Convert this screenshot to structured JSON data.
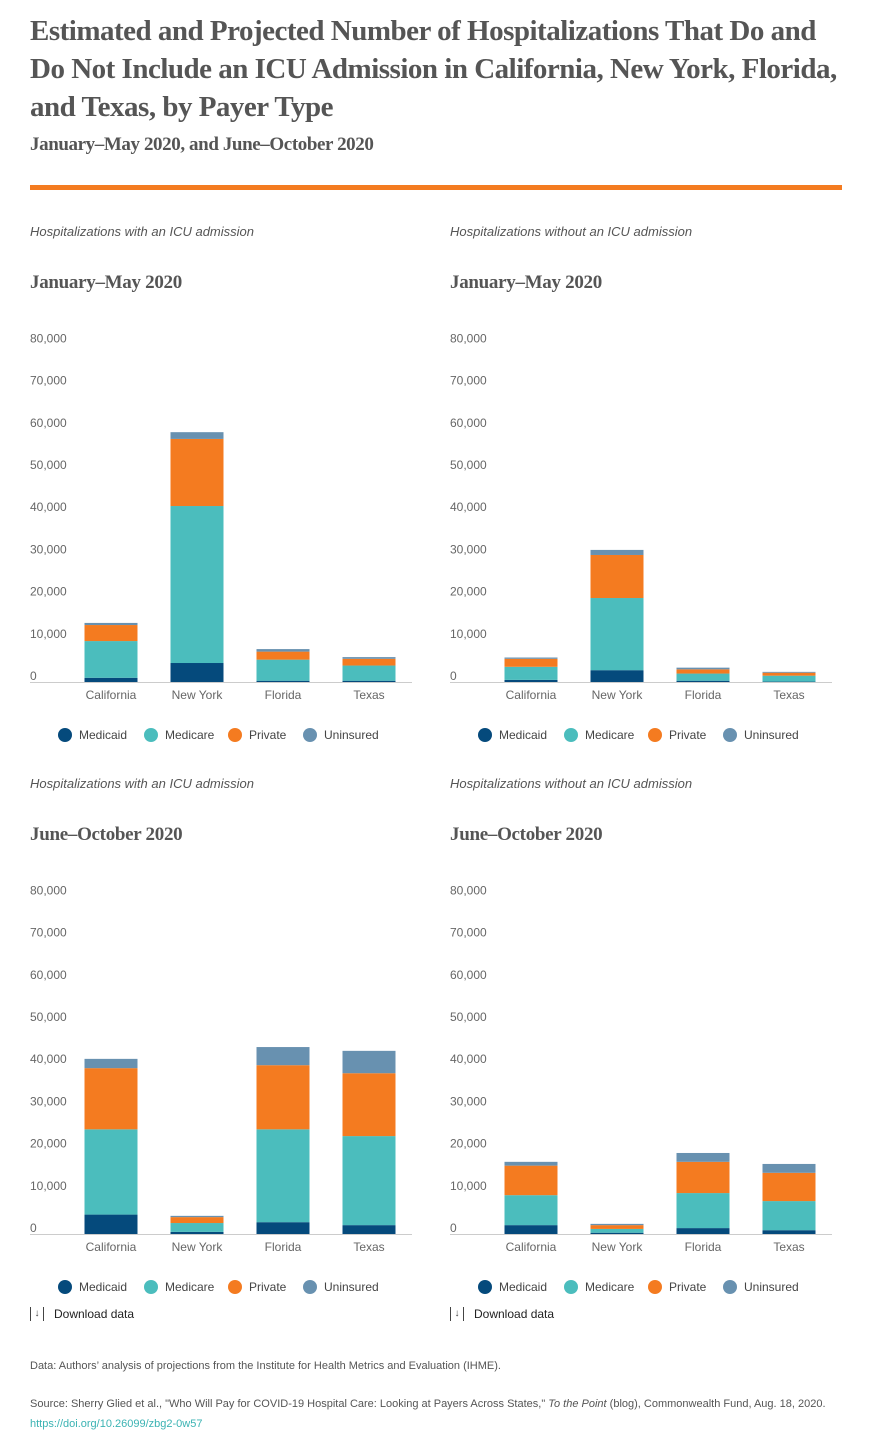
{
  "title": "Estimated and Projected Number of Hospitalizations That Do and Do Not Include an ICU Admission in California, New York, Florida, and Texas, by Payer Type",
  "subtitle": "January–May 2020, and June–October 2020",
  "colors": {
    "accent": "#f47b20",
    "Medicaid": "#054a7c",
    "Medicare": "#4bbdbd",
    "Private": "#f47b20",
    "Uninsured": "#6891b0"
  },
  "legend": [
    "Medicaid",
    "Medicare",
    "Private",
    "Uninsured"
  ],
  "download_label": "Download data",
  "download_icon": "download-icon",
  "data_note": "Data: Authors’ analysis of projections from the Institute for Health Metrics and Evaluation (IHME).",
  "source": {
    "prefix": "Source: Sherry Glied et al., \"Who Will Pay for COVID-19 Hospital Care: Looking at Payers Across States,\" ",
    "italic": "To the Point",
    "suffix": " (blog), Commonwealth Fund, Aug. 18, 2020. ",
    "link": "https://doi.org/10.26099/zbg2-0w57"
  },
  "chart_data": [
    {
      "type": "bar",
      "stacked": true,
      "panel_label": "Hospitalizations with an ICU admission",
      "title": "January–May 2020",
      "categories": [
        "California",
        "New York",
        "Florida",
        "Texas"
      ],
      "ylim": [
        0,
        80000
      ],
      "yticks": [
        "0",
        "10,000",
        "20,000",
        "30,000",
        "40,000",
        "50,000",
        "60,000",
        "70,000",
        "80,000"
      ],
      "grid": false,
      "legend_position": "bottom",
      "series": [
        {
          "name": "Medicaid",
          "values": [
            1000,
            4500,
            300,
            300
          ]
        },
        {
          "name": "Medicare",
          "values": [
            8700,
            37200,
            5000,
            3600
          ]
        },
        {
          "name": "Private",
          "values": [
            3800,
            15900,
            1900,
            1600
          ]
        },
        {
          "name": "Uninsured",
          "values": [
            500,
            1600,
            600,
            400
          ]
        }
      ]
    },
    {
      "type": "bar",
      "stacked": true,
      "panel_label": "Hospitalizations without an ICU admission",
      "title": "January–May 2020",
      "categories": [
        "California",
        "New York",
        "Florida",
        "Texas"
      ],
      "ylim": [
        0,
        80000
      ],
      "yticks": [
        "0",
        "10,000",
        "20,000",
        "30,000",
        "40,000",
        "50,000",
        "60,000",
        "70,000",
        "80,000"
      ],
      "grid": false,
      "legend_position": "bottom",
      "series": [
        {
          "name": "Medicaid",
          "values": [
            500,
            2800,
            300,
            100
          ]
        },
        {
          "name": "Medicare",
          "values": [
            3100,
            17100,
            1700,
            1400
          ]
        },
        {
          "name": "Private",
          "values": [
            1900,
            10200,
            1000,
            700
          ]
        },
        {
          "name": "Uninsured",
          "values": [
            300,
            1200,
            400,
            200
          ]
        }
      ]
    },
    {
      "type": "bar",
      "stacked": true,
      "panel_label": "Hospitalizations with an ICU admission",
      "title": "June–October 2020",
      "categories": [
        "California",
        "New York",
        "Florida",
        "Texas"
      ],
      "ylim": [
        0,
        80000
      ],
      "yticks": [
        "0",
        "10,000",
        "20,000",
        "30,000",
        "40,000",
        "50,000",
        "60,000",
        "70,000",
        "80,000"
      ],
      "grid": false,
      "legend_position": "bottom",
      "series": [
        {
          "name": "Medicaid",
          "values": [
            4600,
            500,
            2800,
            2100
          ]
        },
        {
          "name": "Medicare",
          "values": [
            20200,
            2100,
            22000,
            21100
          ]
        },
        {
          "name": "Private",
          "values": [
            14500,
            1400,
            15200,
            14900
          ]
        },
        {
          "name": "Uninsured",
          "values": [
            2200,
            300,
            4300,
            5300
          ]
        }
      ]
    },
    {
      "type": "bar",
      "stacked": true,
      "panel_label": "Hospitalizations without an ICU admission",
      "title": "June–October 2020",
      "categories": [
        "California",
        "New York",
        "Florida",
        "Texas"
      ],
      "ylim": [
        0,
        80000
      ],
      "yticks": [
        "0",
        "10,000",
        "20,000",
        "30,000",
        "40,000",
        "50,000",
        "60,000",
        "70,000",
        "80,000"
      ],
      "grid": false,
      "legend_position": "bottom",
      "series": [
        {
          "name": "Medicaid",
          "values": [
            2100,
            300,
            1400,
            900
          ]
        },
        {
          "name": "Medicare",
          "values": [
            7100,
            900,
            8300,
            6900
          ]
        },
        {
          "name": "Private",
          "values": [
            7000,
            900,
            7400,
            6700
          ]
        },
        {
          "name": "Uninsured",
          "values": [
            900,
            300,
            2100,
            2100
          ]
        }
      ]
    }
  ]
}
